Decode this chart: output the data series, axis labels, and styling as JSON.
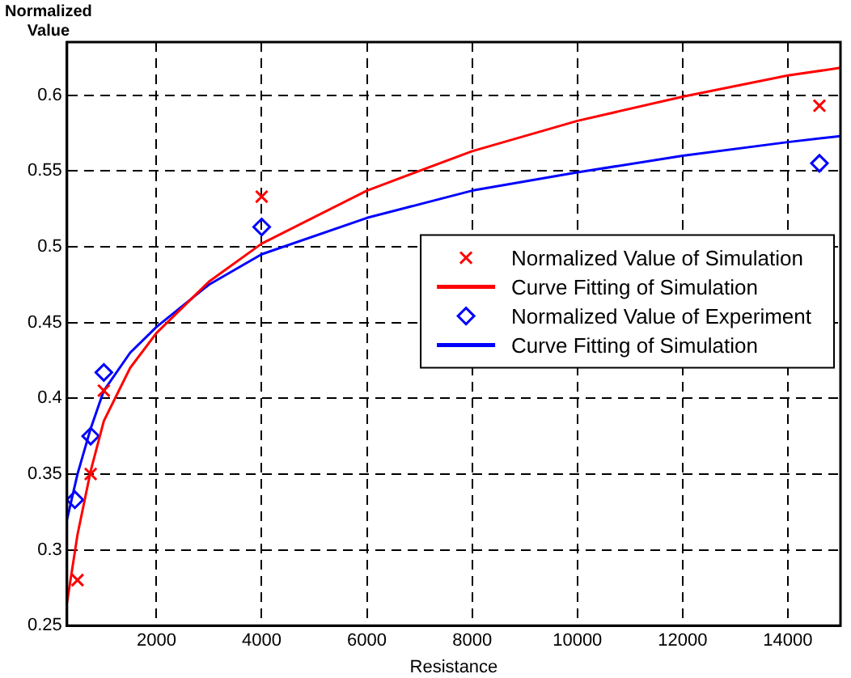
{
  "chart_data": {
    "type": "line",
    "xlabel": "Resistance",
    "ylabel": "Normalized\nValue",
    "xlim": [
      300,
      15000
    ],
    "ylim": [
      0.25,
      0.635
    ],
    "xticks": [
      2000,
      4000,
      6000,
      8000,
      10000,
      12000,
      14000
    ],
    "yticks": [
      0.25,
      0.3,
      0.35,
      0.4,
      0.45,
      0.5,
      0.55,
      0.6
    ],
    "grid": true,
    "legend": "right",
    "series": [
      {
        "name": "Normalized Value of Simulation",
        "type": "scatter",
        "marker": "cross",
        "color": "#ff0000",
        "x": [
          500,
          750,
          1000,
          4000,
          14600
        ],
        "values": [
          0.28,
          0.35,
          0.405,
          0.533,
          0.593
        ]
      },
      {
        "name": "Curve Fitting of Simulation",
        "marker": "none",
        "color": "#ff0000",
        "x": [
          300,
          500,
          750,
          1000,
          1500,
          2000,
          3000,
          4000,
          6000,
          8000,
          10000,
          12000,
          14000,
          15000
        ],
        "values": [
          0.265,
          0.31,
          0.352,
          0.385,
          0.42,
          0.443,
          0.477,
          0.502,
          0.537,
          0.563,
          0.583,
          0.599,
          0.613,
          0.618
        ]
      },
      {
        "name": "Normalized Value of Experiment",
        "type": "scatter",
        "marker": "diamond",
        "color": "#0000ff",
        "x": [
          450,
          750,
          1000,
          4000,
          14600
        ],
        "values": [
          0.333,
          0.375,
          0.417,
          0.513,
          0.555
        ]
      },
      {
        "name": "Curve Fitting of Simulation",
        "marker": "none",
        "color": "#0000ff",
        "x": [
          300,
          500,
          750,
          1000,
          1500,
          2000,
          3000,
          4000,
          6000,
          8000,
          10000,
          12000,
          14000,
          15000
        ],
        "values": [
          0.32,
          0.35,
          0.38,
          0.405,
          0.43,
          0.447,
          0.475,
          0.495,
          0.519,
          0.537,
          0.549,
          0.56,
          0.569,
          0.573
        ]
      }
    ]
  }
}
